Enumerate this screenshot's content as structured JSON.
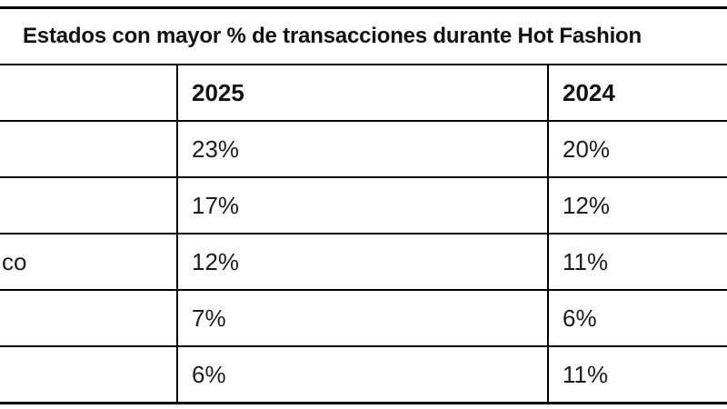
{
  "chart_data": {
    "type": "table",
    "title": "Estados con mayor % de transacciones durante Hot Fashion",
    "columns": [
      "",
      "2025",
      "2024"
    ],
    "rows": [
      [
        "",
        "23%",
        "20%"
      ],
      [
        "",
        "17%",
        "12%"
      ],
      [
        "co",
        "12%",
        "11%"
      ],
      [
        "",
        "7%",
        "6%"
      ],
      [
        "",
        "6%",
        "11%"
      ]
    ],
    "series": [
      {
        "name": "2025",
        "values": [
          23,
          17,
          12,
          7,
          6
        ]
      },
      {
        "name": "2024",
        "values": [
          20,
          12,
          11,
          6,
          11
        ]
      }
    ],
    "unit": "%",
    "layout_hints": {
      "first_column_note": "state-name column cropped at left edge; only fragment 'co' visible in row 3",
      "grid": "full black borders, white background"
    }
  },
  "colors": {
    "border": "#000000",
    "text": "#1c1c1c",
    "background": "#ffffff"
  }
}
